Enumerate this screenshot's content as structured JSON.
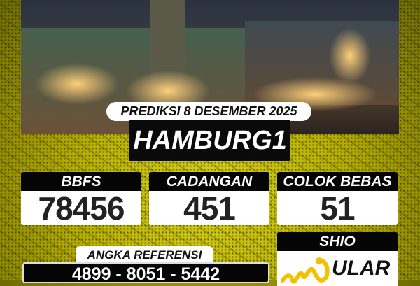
{
  "header": {
    "date_label": "PREDIKSI 8 DESEMBER 2025",
    "market": "HAMBURG1"
  },
  "results": [
    {
      "label": "BBFS",
      "value": "78456"
    },
    {
      "label": "CADANGAN",
      "value": "451"
    },
    {
      "label": "COLOK BEBAS",
      "value": "51"
    }
  ],
  "reference": {
    "label": "ANGKA REFERENSI",
    "value": "4899 - 8051 - 5442"
  },
  "shio": {
    "label": "SHIO",
    "value": "ULAR",
    "icon": "snake-icon"
  },
  "colors": {
    "accent": "#c8c000",
    "panel": "#050505"
  }
}
